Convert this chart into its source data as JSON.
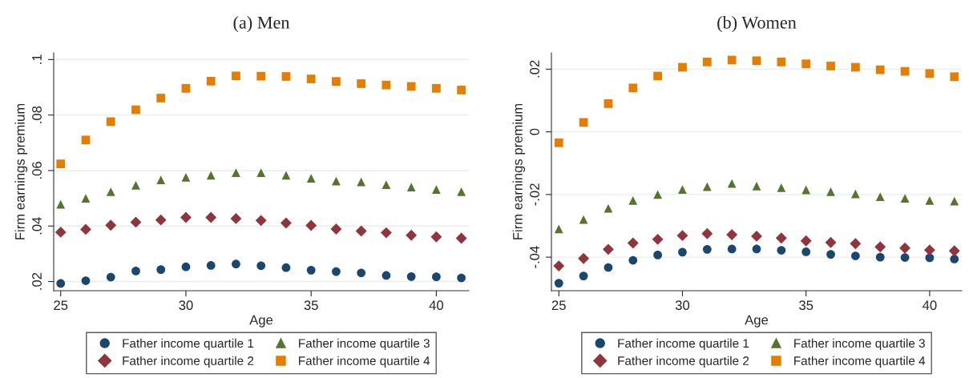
{
  "chart_data": [
    {
      "type": "scatter",
      "title": "(a) Men",
      "xlabel": "Age",
      "ylabel": "Firm earnings premium",
      "x": [
        25,
        26,
        27,
        28,
        29,
        30,
        31,
        32,
        33,
        34,
        35,
        36,
        37,
        38,
        39,
        40,
        41
      ],
      "xlim": [
        24.72,
        41.3
      ],
      "xticks": [
        25,
        30,
        35,
        40
      ],
      "ylim": [
        0.0167,
        0.1024
      ],
      "yticks": [
        {
          "value": 0.02,
          "label": ".02"
        },
        {
          "value": 0.04,
          "label": ".04"
        },
        {
          "value": 0.06,
          "label": ".06"
        },
        {
          "value": 0.08,
          "label": ".08"
        },
        {
          "value": 0.1,
          "label": ".1"
        }
      ],
      "grid": "y",
      "legend": "bottom",
      "series": [
        {
          "name": "Father income quartile 1",
          "color": "#1a476f",
          "marker": "circle",
          "values": [
            0.0193,
            0.0203,
            0.0216,
            0.0238,
            0.0243,
            0.0253,
            0.0258,
            0.0263,
            0.0257,
            0.025,
            0.0241,
            0.0236,
            0.0231,
            0.0222,
            0.0218,
            0.0217,
            0.0213
          ]
        },
        {
          "name": "Father income quartile 2",
          "color": "#90353b",
          "marker": "diamond",
          "values": [
            0.0378,
            0.0388,
            0.0403,
            0.0414,
            0.0422,
            0.0431,
            0.0431,
            0.0427,
            0.042,
            0.0411,
            0.0402,
            0.0389,
            0.0382,
            0.0376,
            0.0367,
            0.0361,
            0.0356
          ]
        },
        {
          "name": "Father income quartile 3",
          "color": "#55752f",
          "marker": "triangle",
          "values": [
            0.0478,
            0.05,
            0.0524,
            0.0547,
            0.0566,
            0.0576,
            0.0583,
            0.0592,
            0.0592,
            0.0583,
            0.0572,
            0.0562,
            0.0559,
            0.0549,
            0.054,
            0.0532,
            0.0524
          ]
        },
        {
          "name": "Father income quartile 4",
          "color": "#e37e00",
          "marker": "square",
          "values": [
            0.0624,
            0.071,
            0.0776,
            0.0819,
            0.0861,
            0.0896,
            0.0922,
            0.0941,
            0.094,
            0.0939,
            0.093,
            0.0921,
            0.0913,
            0.0908,
            0.0903,
            0.0896,
            0.089
          ]
        }
      ]
    },
    {
      "type": "scatter",
      "title": "(b) Women",
      "xlabel": "Age",
      "ylabel": "Firm earnings premium",
      "x": [
        25,
        26,
        27,
        28,
        29,
        30,
        31,
        32,
        33,
        34,
        35,
        36,
        37,
        38,
        39,
        40,
        41
      ],
      "xlim": [
        24.7,
        41.3
      ],
      "xticks": [
        25,
        30,
        35,
        40
      ],
      "ylim": [
        -0.0507,
        0.0252
      ],
      "yticks": [
        {
          "value": -0.04,
          "label": "-.04"
        },
        {
          "value": -0.02,
          "label": "-.02"
        },
        0,
        {
          "value": 0.02,
          "label": ".02"
        }
      ],
      "grid": "y",
      "legend": "bottom",
      "series": [
        {
          "name": "Father income quartile 1",
          "color": "#1a476f",
          "marker": "circle",
          "values": [
            -0.0483,
            -0.046,
            -0.0433,
            -0.041,
            -0.0393,
            -0.0384,
            -0.0375,
            -0.0374,
            -0.0374,
            -0.0378,
            -0.0383,
            -0.0391,
            -0.0396,
            -0.04,
            -0.0401,
            -0.0402,
            -0.0406
          ]
        },
        {
          "name": "Father income quartile 2",
          "color": "#90353b",
          "marker": "diamond",
          "values": [
            -0.0428,
            -0.0404,
            -0.0375,
            -0.0355,
            -0.0343,
            -0.0331,
            -0.0325,
            -0.0328,
            -0.0333,
            -0.0339,
            -0.0348,
            -0.0353,
            -0.0357,
            -0.0367,
            -0.0371,
            -0.0377,
            -0.038
          ]
        },
        {
          "name": "Father income quartile 3",
          "color": "#55752f",
          "marker": "triangle",
          "values": [
            -0.031,
            -0.028,
            -0.0244,
            -0.0219,
            -0.02,
            -0.0184,
            -0.0175,
            -0.0165,
            -0.0173,
            -0.0178,
            -0.0185,
            -0.0191,
            -0.0198,
            -0.0207,
            -0.0212,
            -0.0219,
            -0.0221
          ]
        },
        {
          "name": "Father income quartile 4",
          "color": "#e37e00",
          "marker": "square",
          "values": [
            -0.0035,
            0.003,
            0.009,
            0.014,
            0.0178,
            0.0206,
            0.0223,
            0.0229,
            0.0227,
            0.0223,
            0.0217,
            0.021,
            0.0206,
            0.0198,
            0.0193,
            0.0186,
            0.0176
          ]
        }
      ]
    }
  ]
}
